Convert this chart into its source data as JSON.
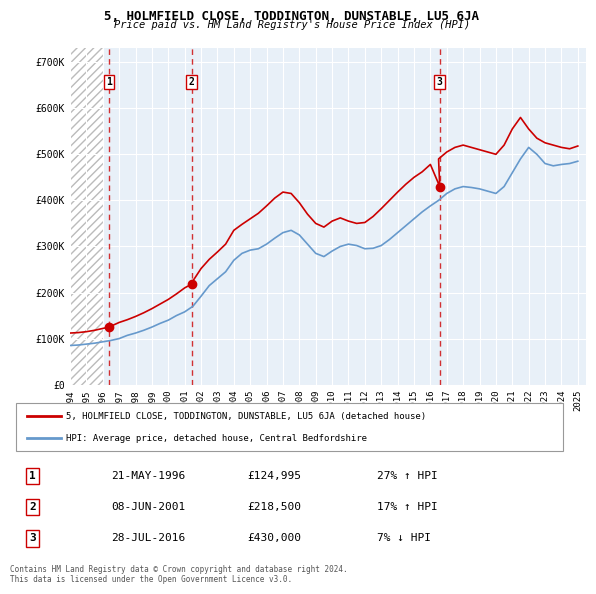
{
  "title": "5, HOLMFIELD CLOSE, TODDINGTON, DUNSTABLE, LU5 6JA",
  "subtitle": "Price paid vs. HM Land Registry's House Price Index (HPI)",
  "sales": [
    {
      "date": "1996-05-21",
      "price": 124995,
      "label": "1"
    },
    {
      "date": "2001-06-08",
      "price": 218500,
      "label": "2"
    },
    {
      "date": "2016-07-28",
      "price": 430000,
      "label": "3"
    }
  ],
  "sale_labels": [
    "1",
    "2",
    "3"
  ],
  "sale_dates_decimal": [
    1996.388,
    2001.438,
    2016.572
  ],
  "sale_prices": [
    124995,
    218500,
    430000
  ],
  "hpi_dates": [
    1994.0,
    1994.5,
    1995.0,
    1995.5,
    1996.0,
    1996.5,
    1997.0,
    1997.5,
    1998.0,
    1998.5,
    1999.0,
    1999.5,
    2000.0,
    2000.5,
    2001.0,
    2001.5,
    2002.0,
    2002.5,
    2003.0,
    2003.5,
    2004.0,
    2004.5,
    2005.0,
    2005.5,
    2006.0,
    2006.5,
    2007.0,
    2007.5,
    2008.0,
    2008.5,
    2009.0,
    2009.5,
    2010.0,
    2010.5,
    2011.0,
    2011.5,
    2012.0,
    2012.5,
    2013.0,
    2013.5,
    2014.0,
    2014.5,
    2015.0,
    2015.5,
    2016.0,
    2016.5,
    2017.0,
    2017.5,
    2018.0,
    2018.5,
    2019.0,
    2019.5,
    2020.0,
    2020.5,
    2021.0,
    2021.5,
    2022.0,
    2022.5,
    2023.0,
    2023.5,
    2024.0,
    2024.5,
    2025.0
  ],
  "hpi_values": [
    85000,
    86000,
    88000,
    90000,
    93000,
    96000,
    100000,
    107000,
    112000,
    118000,
    125000,
    133000,
    140000,
    150000,
    158000,
    170000,
    192000,
    215000,
    230000,
    245000,
    270000,
    285000,
    292000,
    295000,
    305000,
    318000,
    330000,
    335000,
    325000,
    305000,
    285000,
    278000,
    290000,
    300000,
    305000,
    302000,
    295000,
    296000,
    302000,
    315000,
    330000,
    345000,
    360000,
    375000,
    388000,
    400000,
    415000,
    425000,
    430000,
    428000,
    425000,
    420000,
    415000,
    430000,
    460000,
    490000,
    515000,
    500000,
    480000,
    475000,
    478000,
    480000,
    485000
  ],
  "red_line_dates": [
    1994.0,
    1994.5,
    1995.0,
    1995.5,
    1996.0,
    1996.388,
    1996.5,
    1997.0,
    1997.5,
    1998.0,
    1998.5,
    1999.0,
    1999.5,
    2000.0,
    2000.5,
    2001.0,
    2001.438,
    2001.5,
    2002.0,
    2002.5,
    2003.0,
    2003.5,
    2004.0,
    2004.5,
    2005.0,
    2005.5,
    2006.0,
    2006.5,
    2007.0,
    2007.5,
    2008.0,
    2008.5,
    2009.0,
    2009.5,
    2010.0,
    2010.5,
    2011.0,
    2011.5,
    2012.0,
    2012.5,
    2013.0,
    2013.5,
    2014.0,
    2014.5,
    2015.0,
    2015.5,
    2016.0,
    2016.572,
    2016.5,
    2017.0,
    2017.5,
    2018.0,
    2018.5,
    2019.0,
    2019.5,
    2020.0,
    2020.5,
    2021.0,
    2021.5,
    2022.0,
    2022.5,
    2023.0,
    2023.5,
    2024.0,
    2024.5,
    2025.0
  ],
  "red_line_values": [
    112000,
    113000,
    115000,
    118000,
    122000,
    124995,
    127000,
    135000,
    141000,
    148000,
    156000,
    165000,
    175000,
    185000,
    197000,
    210000,
    218500,
    225000,
    252000,
    272000,
    288000,
    305000,
    335000,
    348000,
    360000,
    372000,
    388000,
    405000,
    418000,
    415000,
    395000,
    370000,
    350000,
    342000,
    355000,
    362000,
    355000,
    350000,
    352000,
    365000,
    382000,
    400000,
    418000,
    435000,
    450000,
    462000,
    478000,
    430000,
    490000,
    505000,
    515000,
    520000,
    515000,
    510000,
    505000,
    500000,
    520000,
    555000,
    580000,
    555000,
    535000,
    525000,
    520000,
    515000,
    512000,
    518000
  ],
  "xlim": [
    1994.0,
    2025.5
  ],
  "ylim": [
    0,
    730000
  ],
  "yticks": [
    0,
    100000,
    200000,
    300000,
    400000,
    500000,
    600000,
    700000
  ],
  "ytick_labels": [
    "£0",
    "£100K",
    "£200K",
    "£300K",
    "£400K",
    "£500K",
    "£600K",
    "£700K"
  ],
  "xticks": [
    1994,
    1995,
    1996,
    1997,
    1998,
    1999,
    2000,
    2001,
    2002,
    2003,
    2004,
    2005,
    2006,
    2007,
    2008,
    2009,
    2010,
    2011,
    2012,
    2013,
    2014,
    2015,
    2016,
    2017,
    2018,
    2019,
    2020,
    2021,
    2022,
    2023,
    2024,
    2025
  ],
  "red_color": "#cc0000",
  "blue_color": "#6699cc",
  "hatch_color": "#cccccc",
  "grid_color": "#ccddee",
  "label1_date": "21-MAY-1996",
  "label2_date": "08-JUN-2001",
  "label3_date": "28-JUL-2016",
  "label1_price": "£124,995",
  "label2_price": "£218,500",
  "label3_price": "£430,000",
  "label1_hpi": "27% ↑ HPI",
  "label2_hpi": "17% ↑ HPI",
  "label3_hpi": "7% ↓ HPI",
  "footer": "Contains HM Land Registry data © Crown copyright and database right 2024.\nThis data is licensed under the Open Government Licence v3.0.",
  "legend_line1": "5, HOLMFIELD CLOSE, TODDINGTON, DUNSTABLE, LU5 6JA (detached house)",
  "legend_line2": "HPI: Average price, detached house, Central Bedfordshire",
  "background_hatch_xlim": [
    1994.0,
    1996.0
  ]
}
